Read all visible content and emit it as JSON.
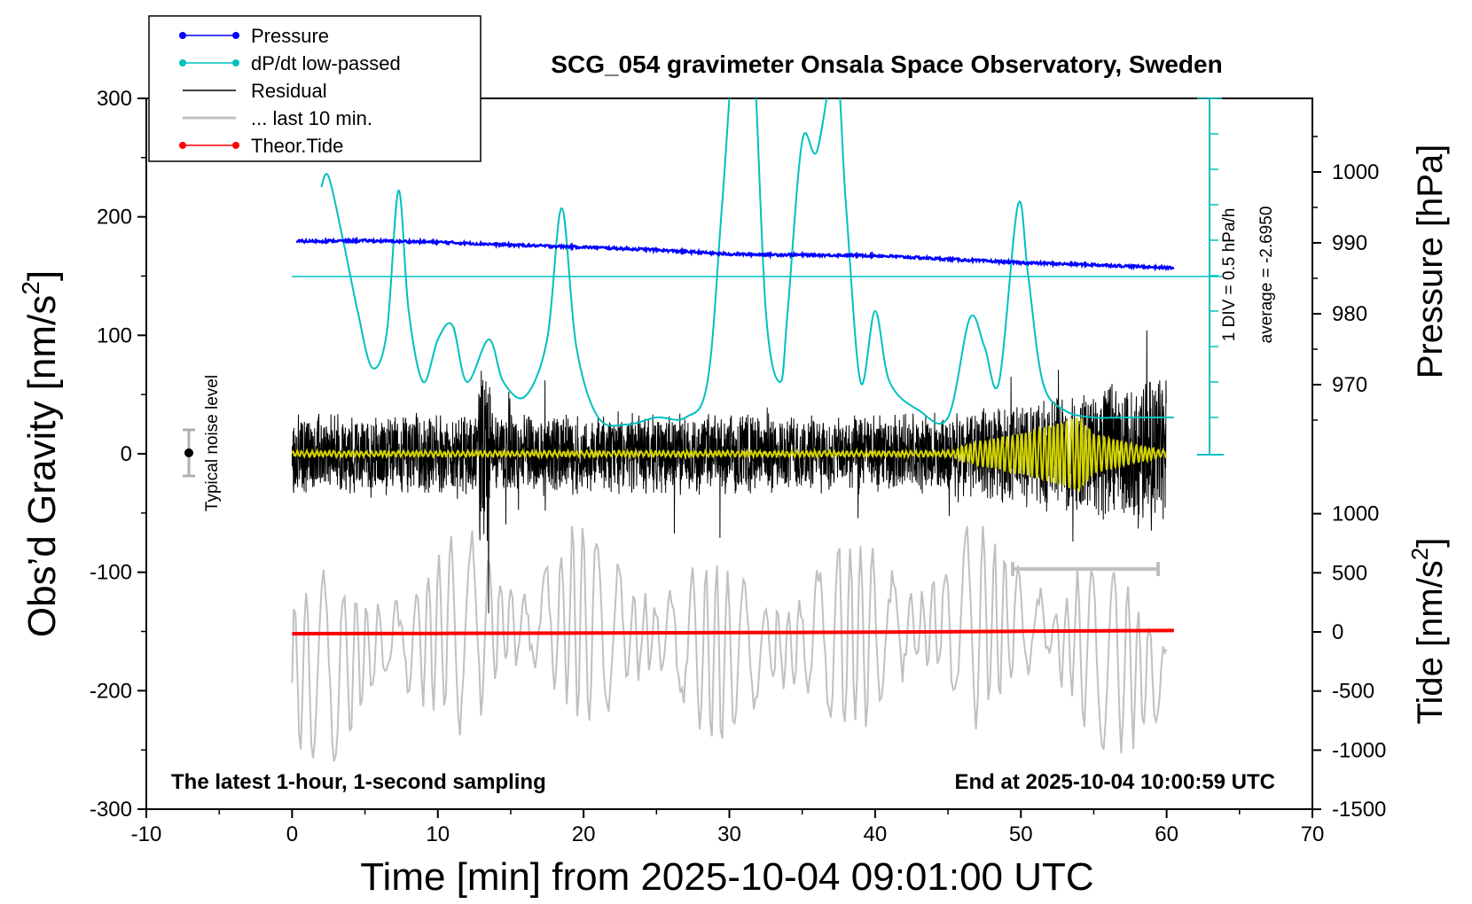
{
  "chart_data": {
    "type": "line",
    "title": "SCG_054 gravimeter Onsala Space Observatory, Sweden",
    "xlabel": "Time [min] from 2025-10-04 09:01:00 UTC",
    "ylabel_left": "Obs'd Gravity [nm/s2]",
    "ylabel_left_main": "Obs’d Gravity [nm/s",
    "ylabel_left_sup": "2",
    "ylabel_left_end": "]",
    "ylabel_pressure": "Pressure [hPa]",
    "ylabel_tide_main": "Tide [nm/s",
    "ylabel_tide_sup": "2",
    "ylabel_tide_end": "]",
    "xlim": [
      -10,
      70
    ],
    "ylim": [
      -300,
      300
    ],
    "xticks": [
      "-10",
      "0",
      "10",
      "20",
      "30",
      "40",
      "50",
      "60",
      "70"
    ],
    "yticks": [
      "300",
      "200",
      "100",
      "0",
      "-100",
      "-200",
      "-300"
    ],
    "pressure_axis": {
      "ticks": [
        "1000",
        "990",
        "980",
        "970"
      ],
      "values": [
        1000,
        990,
        980,
        970
      ]
    },
    "tide_axis": {
      "ticks": [
        "1000",
        "500",
        "0",
        "-500",
        "-1000",
        "-1500"
      ],
      "values": [
        1000,
        500,
        0,
        -500,
        -1000,
        -1500
      ]
    },
    "legend_placement": "top-left",
    "legend": [
      {
        "label": "Pressure",
        "color": "#0000ff",
        "marker": true
      },
      {
        "label": "dP/dt low-passed",
        "color": "#00c0c0",
        "marker": true
      },
      {
        "label": "Residual",
        "color": "#000000",
        "marker": false
      },
      {
        "label": "... last 10 min.",
        "color": "#c0c0c0",
        "marker": false
      },
      {
        "label": "Theor.Tide",
        "color": "#ff0000",
        "marker": true
      }
    ],
    "annotations": {
      "noise_label": "Typical noise level",
      "div_label": "1 DIV = 0.5 hPa/h",
      "average_label": "average = -2.6950",
      "bottom_left": "The latest 1-hour, 1-second sampling",
      "bottom_right": "End at 2025-10-04 10:00:59 UTC"
    },
    "series": [
      {
        "name": "Pressure",
        "unit": "hPa",
        "color": "#0000ff",
        "x": [
          0,
          5,
          10,
          15,
          20,
          25,
          30,
          35,
          40,
          45,
          50,
          55,
          60
        ],
        "values": [
          990.2,
          990.3,
          990.1,
          989.7,
          989.4,
          989.0,
          988.4,
          988.3,
          988.2,
          987.7,
          987.2,
          986.9,
          986.5
        ]
      },
      {
        "name": "dP/dt low-passed",
        "unit": "hPa/h",
        "color": "#00c0c0",
        "x": [
          2.0,
          2.5,
          3.5,
          4.5,
          5.5,
          6.5,
          7.3,
          8.0,
          9.0,
          10.0,
          11.0,
          12.0,
          13.5,
          14.5,
          16.0,
          17.5,
          18.5,
          19.5,
          21.0,
          23.0,
          25.0,
          27.0,
          28.5,
          29.5,
          30.5,
          31.5,
          32.5,
          33.5,
          34.0,
          35.0,
          36.0,
          37.3,
          38.0,
          39.0,
          40.0,
          41.0,
          43.0,
          45.0,
          46.5,
          47.5,
          48.5,
          49.8,
          50.5,
          51.5,
          53.0,
          55.0,
          57.0,
          59.0,
          60.5
        ],
        "values": [
          -1.25,
          -1.1,
          -2.0,
          -3.0,
          -3.8,
          -3.3,
          -1.3,
          -3.0,
          -4.0,
          -3.4,
          -3.2,
          -4.0,
          -3.4,
          -4.0,
          -4.2,
          -3.4,
          -1.55,
          -3.5,
          -4.5,
          -4.6,
          -4.5,
          -4.5,
          -4.0,
          -1.5,
          1.2,
          1.3,
          -3.0,
          -4.0,
          -3.0,
          -0.6,
          -0.75,
          0.5,
          -1.5,
          -4.0,
          -3.0,
          -4.0,
          -4.4,
          -4.5,
          -3.1,
          -3.5,
          -4.0,
          -1.5,
          -2.5,
          -4.0,
          -4.4,
          -4.5,
          -4.5,
          -4.5,
          -4.5
        ]
      },
      {
        "name": "Residual",
        "unit": "nm/s2",
        "color": "#000000",
        "x": [
          0,
          5,
          10,
          13,
          15,
          20,
          25,
          30,
          35,
          40,
          45,
          50,
          53,
          55,
          60
        ],
        "values": [
          0,
          35,
          -45,
          100,
          40,
          -50,
          40,
          -55,
          45,
          -50,
          50,
          -70,
          -115,
          85,
          -60
        ]
      },
      {
        "name": "Residual low-passed",
        "unit": "nm/s2",
        "color": "#d4d400",
        "x": [
          0,
          10,
          20,
          30,
          40,
          45,
          47,
          50,
          53,
          54,
          55,
          58,
          60
        ],
        "values": [
          0,
          0,
          0,
          0,
          0,
          0,
          8,
          15,
          25,
          30,
          15,
          5,
          0
        ]
      },
      {
        "name": "... last 10 min.",
        "unit": "nm/s2",
        "color": "#c0c0c0",
        "x": [
          0,
          10,
          20,
          30,
          40,
          50,
          60
        ],
        "values": [
          -190,
          -150,
          -140,
          -170,
          -150,
          -140,
          -195
        ]
      },
      {
        "name": "Theor.Tide",
        "unit": "nm/s2",
        "color": "#ff0000",
        "x": [
          0,
          10,
          20,
          30,
          40,
          50,
          60.5
        ],
        "values": [
          -15,
          -13,
          -10,
          -6,
          -2,
          5,
          12
        ]
      }
    ]
  }
}
